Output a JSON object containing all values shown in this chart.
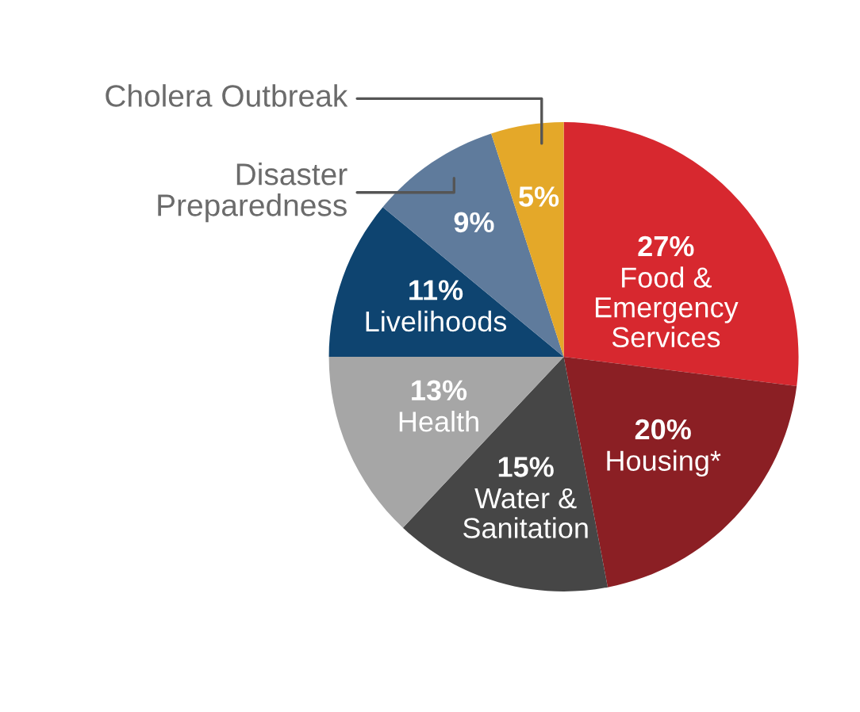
{
  "chart_data": {
    "type": "pie",
    "categories": [
      "Food &\nEmergency\nServices",
      "Housing*",
      "Water &\nSanitation",
      "Health",
      "Livelihoods",
      "Disaster\nPreparedness",
      "Cholera Outbreak"
    ],
    "values": [
      27,
      20,
      15,
      13,
      11,
      9,
      5
    ],
    "value_labels": [
      "27%",
      "20%",
      "15%",
      "13%",
      "11%",
      "9%",
      "5%"
    ],
    "colors": [
      "#d7282f",
      "#8b1f24",
      "#464646",
      "#a6a6a6",
      "#0e4470",
      "#5f7b9c",
      "#e4a829"
    ]
  }
}
